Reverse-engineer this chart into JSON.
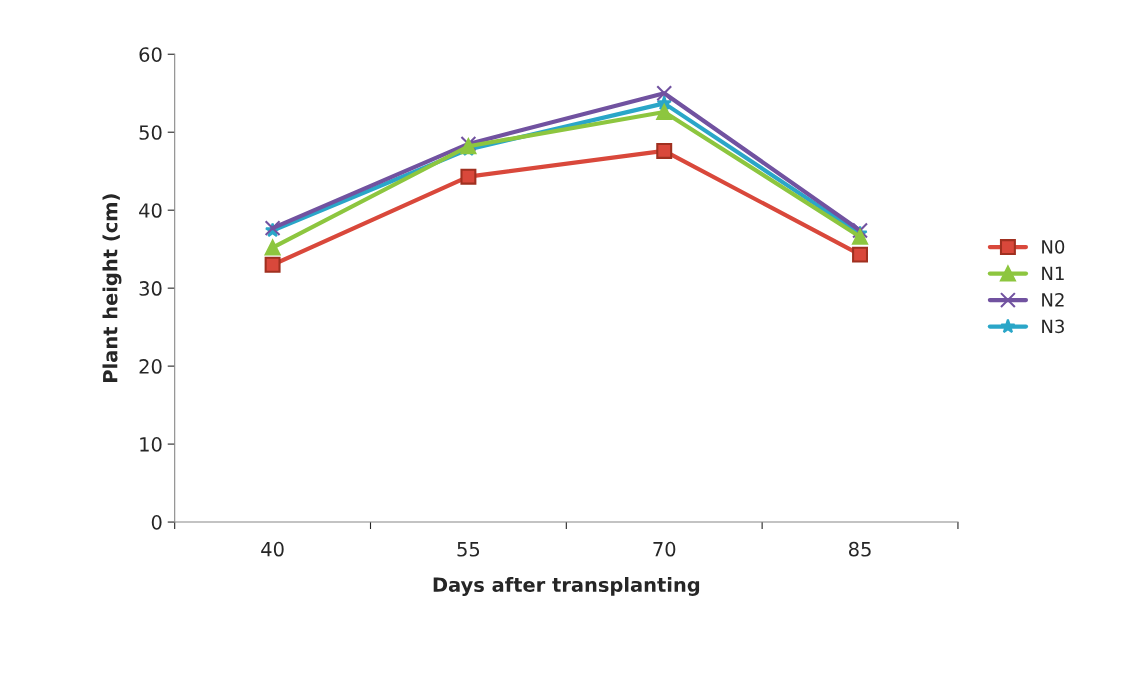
{
  "chart_data": {
    "type": "line",
    "xlabel": "Days after transplanting",
    "ylabel": "Plant height (cm)",
    "categories": [
      "40",
      "55",
      "70",
      "85"
    ],
    "series": [
      {
        "name": "N0",
        "color": "#d9483b",
        "marker": "square",
        "values": [
          33,
          44.3,
          47.6,
          34.3
        ]
      },
      {
        "name": "N1",
        "color": "#8dc63f",
        "marker": "triangle",
        "values": [
          35.2,
          48.2,
          52.6,
          36.6
        ]
      },
      {
        "name": "N2",
        "color": "#7152a0",
        "marker": "cross",
        "values": [
          37.7,
          48.5,
          55,
          37.4
        ]
      },
      {
        "name": "N3",
        "color": "#2aa6c8",
        "marker": "star",
        "values": [
          37.4,
          47.8,
          53.7,
          37
        ]
      }
    ],
    "ylim": [
      0,
      60
    ],
    "yticks": [
      0,
      10,
      20,
      30,
      40,
      50,
      60
    ],
    "grid": false,
    "legend": "right",
    "line_style": "solid"
  }
}
